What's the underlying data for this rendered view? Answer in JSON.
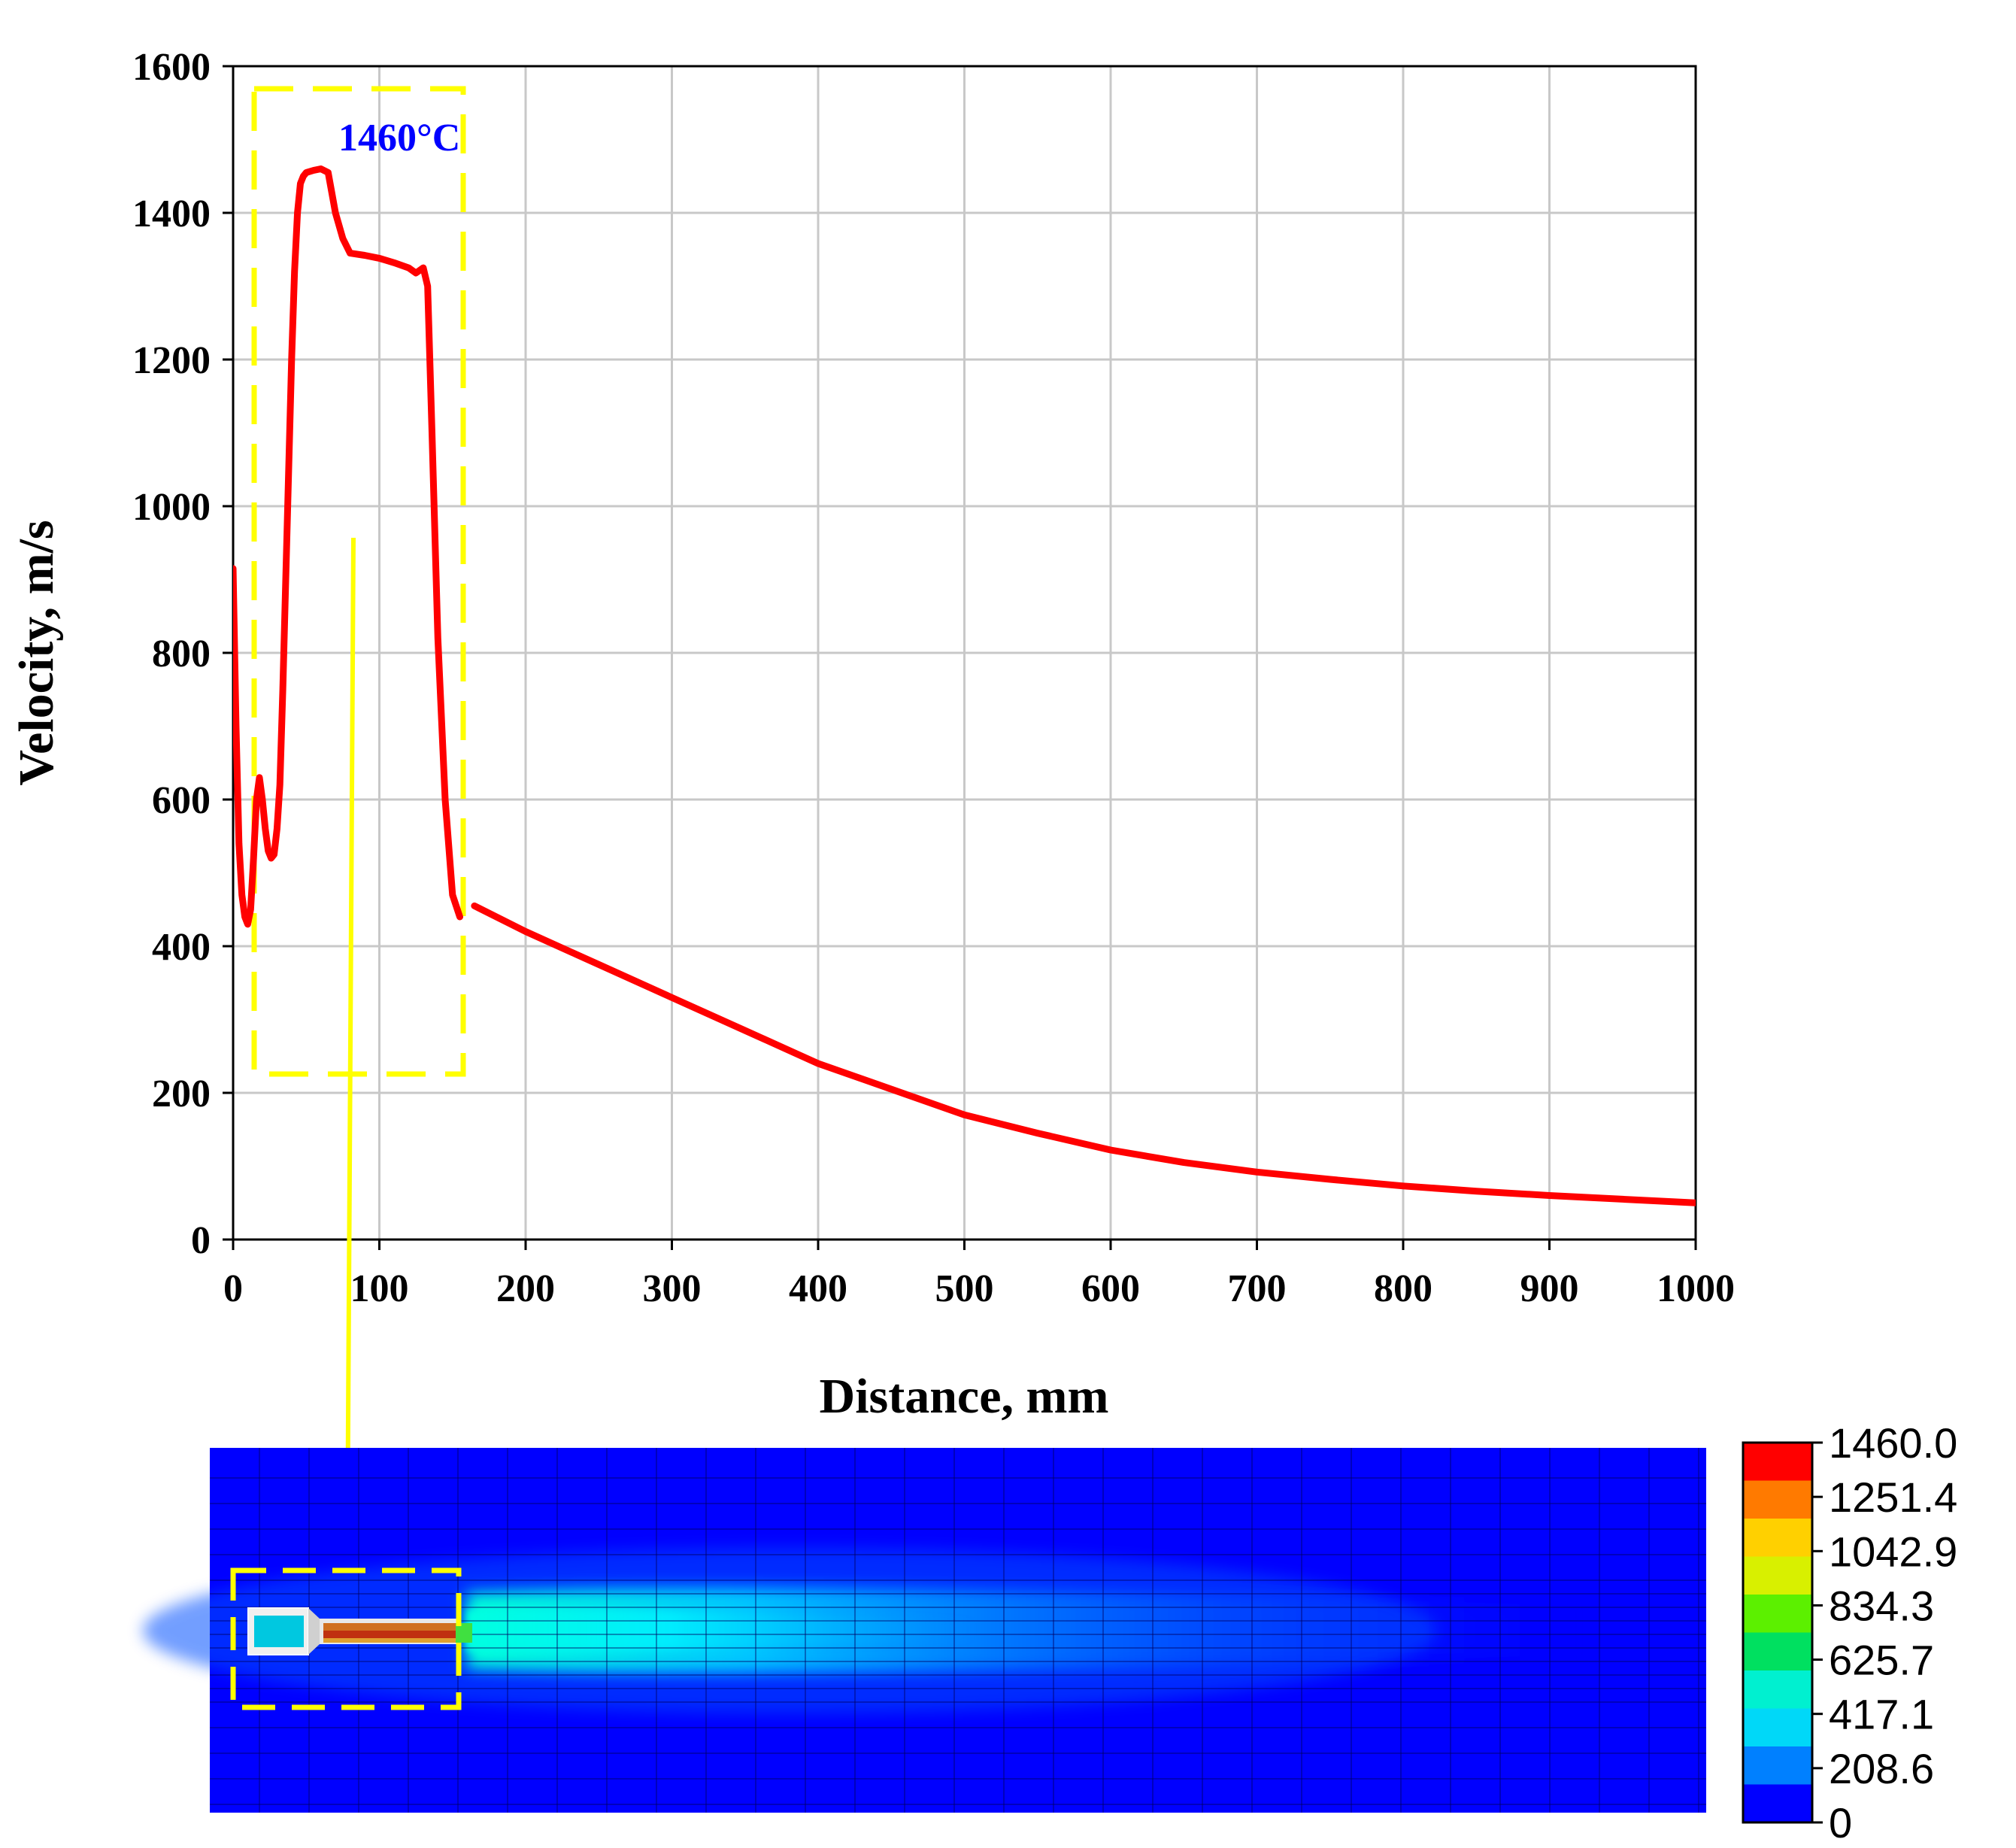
{
  "chart_data": {
    "type": "line",
    "xlabel": "Distance, mm",
    "ylabel": "Velocity, m/s",
    "xlim": [
      0,
      1000
    ],
    "ylim": [
      0,
      1600
    ],
    "xticks": [
      "0",
      "100",
      "200",
      "300",
      "400",
      "500",
      "600",
      "700",
      "800",
      "900",
      "1000"
    ],
    "yticks": [
      "0",
      "200",
      "400",
      "600",
      "800",
      "1000",
      "1200",
      "1400",
      "1600"
    ],
    "grid": true,
    "series": [
      {
        "color": "#ff0000",
        "x": [
          0,
          2,
          4,
          6,
          8,
          10,
          12,
          14,
          16,
          18,
          20,
          22,
          24,
          26,
          28,
          30,
          32,
          34,
          36,
          38,
          40,
          42,
          44,
          46,
          48,
          50,
          55,
          60,
          65,
          70,
          75,
          80,
          90,
          100,
          110,
          120,
          125,
          130,
          133,
          136,
          140,
          145,
          150,
          155
        ],
        "y": [
          915,
          700,
          540,
          470,
          440,
          430,
          450,
          520,
          600,
          630,
          600,
          560,
          530,
          520,
          525,
          560,
          620,
          750,
          900,
          1050,
          1200,
          1320,
          1400,
          1440,
          1450,
          1455,
          1458,
          1460,
          1455,
          1400,
          1365,
          1345,
          1342,
          1338,
          1332,
          1325,
          1318,
          1325,
          1300,
          1100,
          820,
          600,
          470,
          440
        ]
      },
      {
        "color": "#ff0000",
        "x": [
          165,
          200,
          250,
          300,
          350,
          400,
          450,
          500,
          550,
          600,
          650,
          700,
          750,
          800,
          850,
          900,
          950,
          1000
        ],
        "y": [
          455,
          420,
          375,
          330,
          285,
          240,
          205,
          170,
          145,
          122,
          105,
          92,
          82,
          73,
          66,
          60,
          55,
          50
        ]
      }
    ],
    "annotations": [
      {
        "text": "1460°C",
        "color": "#0000ff"
      }
    ]
  },
  "contour": {
    "legend_values": [
      "1460.0",
      "1251.4",
      "1042.9",
      "834.3",
      "625.7",
      "417.1",
      "208.6",
      "0"
    ],
    "legend_colors": [
      "#ff0000",
      "#ff7a00",
      "#ffd000",
      "#d8f000",
      "#5cf000",
      "#00e060",
      "#00f0d0",
      "#00d8f8",
      "#0080ff",
      "#0000ff"
    ]
  }
}
